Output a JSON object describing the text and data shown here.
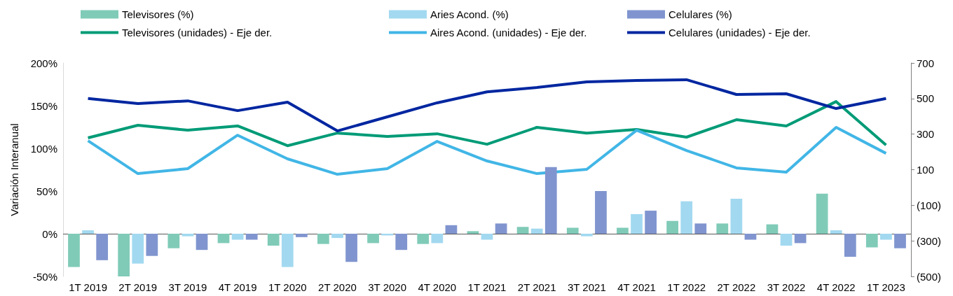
{
  "chart_data": {
    "type": "bar",
    "ylabel": "Variación Interanual",
    "categories": [
      "1T 2019",
      "2T 2019",
      "3T 2019",
      "4T 2019",
      "1T 2020",
      "2T 2020",
      "3T 2020",
      "4T 2020",
      "1T 2021",
      "2T 2021",
      "3T 2021",
      "4T 2021",
      "1T 2022",
      "2T 2022",
      "3T 2022",
      "4T 2022",
      "1T 2023"
    ],
    "series": [
      {
        "name": "Televisores (%)",
        "color": "#80cbb8",
        "values": [
          -39,
          -50,
          -17,
          -11,
          -14,
          -12,
          -11,
          -12,
          3,
          8,
          7,
          7,
          15,
          12,
          11,
          47,
          -16
        ]
      },
      {
        "name": "Aries Acond. (%)",
        "color": "#a2d9f0",
        "values": [
          4,
          -35,
          -3,
          -7,
          -39,
          -5,
          -2,
          -11,
          -7,
          6,
          -3,
          23,
          38,
          41,
          -14,
          4,
          -7
        ]
      },
      {
        "name": "Celulares (%)",
        "color": "#8095cf",
        "values": [
          -31,
          -26,
          -19,
          -7,
          -4,
          -33,
          -19,
          10,
          12,
          78,
          50,
          27,
          12,
          -7,
          -11,
          -27,
          -17
        ]
      },
      {
        "name": "Televisores (unidades) - Eje der.",
        "type": "line",
        "axis": "y2",
        "color": "#009b77",
        "values": [
          279,
          350,
          322,
          346,
          235,
          306,
          287,
          302,
          243,
          338,
          306,
          326,
          283,
          381,
          346,
          483,
          239
        ]
      },
      {
        "name": "Aires Acond. (unidades) - Eje der.",
        "type": "line",
        "axis": "y2",
        "color": "#41b6e6",
        "values": [
          263,
          78,
          106,
          294,
          161,
          74,
          106,
          259,
          149,
          78,
          102,
          322,
          208,
          110,
          86,
          338,
          192
        ]
      },
      {
        "name": "Celulares (unidades) - Eje der.",
        "type": "line",
        "axis": "y2",
        "color": "#0026a0",
        "values": [
          500,
          472,
          487,
          432,
          480,
          318,
          397,
          476,
          538,
          562,
          594,
          602,
          606,
          523,
          527,
          444,
          500
        ]
      }
    ],
    "ylim": [
      -50,
      200
    ],
    "yticks": [
      {
        "value": -50,
        "label": "-50%"
      },
      {
        "value": 0,
        "label": "0%"
      },
      {
        "value": 50,
        "label": "50%"
      },
      {
        "value": 100,
        "label": "100%"
      },
      {
        "value": 150,
        "label": "150%"
      },
      {
        "value": 200,
        "label": "200%"
      }
    ],
    "y2lim": [
      -500,
      700
    ],
    "y2ticks": [
      {
        "value": -500,
        "label": "(500)"
      },
      {
        "value": -300,
        "label": "(300)"
      },
      {
        "value": -100,
        "label": "(100)"
      },
      100,
      300,
      500,
      700
    ],
    "ref_lines": [
      {
        "axis": "y",
        "value": 0,
        "color": "#595959"
      }
    ],
    "grid": false,
    "legend": "top",
    "marker": "none"
  }
}
